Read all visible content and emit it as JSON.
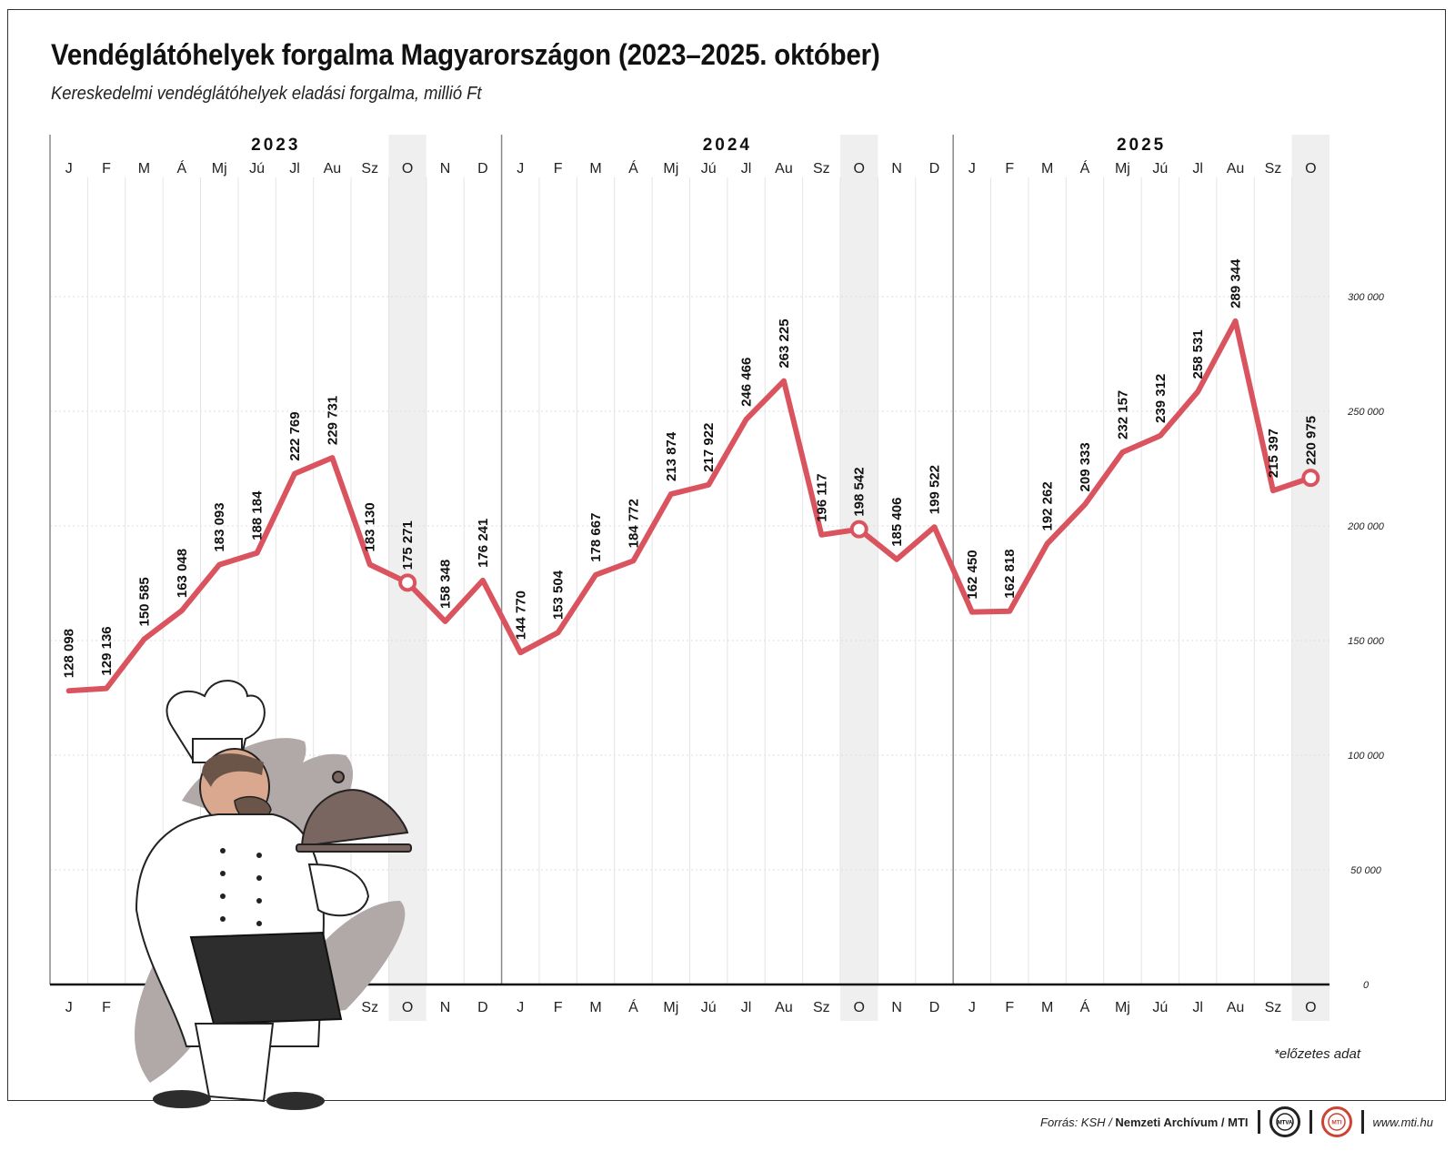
{
  "title": "Vendéglátóhelyek forgalma Magyarországon (2023–2025. október)",
  "subtitle": "Kereskedelmi vendéglátóhelyek eladási forgalma, millió Ft",
  "note": "*előzetes adat",
  "footer": {
    "source_prefix": "Forrás: KSH / ",
    "source_bold": "Nemzeti Archívum / MTI",
    "logo1_text": "MTVA",
    "logo2_text": "MTI",
    "url": "www.mti.hu"
  },
  "colors": {
    "line": "#d9545f",
    "highlight_band": "#efefef",
    "text": "#222222",
    "grid": "#dddddd"
  },
  "chart_data": {
    "type": "line",
    "years": [
      "2023",
      "2024",
      "2025"
    ],
    "months": [
      "J",
      "F",
      "M",
      "Á",
      "Mj",
      "Jú",
      "Jl",
      "Au",
      "Sz",
      "O",
      "N",
      "D",
      "J",
      "F",
      "M",
      "Á",
      "Mj",
      "Jú",
      "Jl",
      "Au",
      "Sz",
      "O",
      "N",
      "D",
      "J",
      "F",
      "M",
      "Á",
      "Mj",
      "Jú",
      "Jl",
      "Au",
      "Sz",
      "O"
    ],
    "values": [
      128098,
      129136,
      150585,
      163048,
      183093,
      188184,
      222769,
      229731,
      183130,
      175271,
      158348,
      176241,
      144770,
      153504,
      178667,
      184772,
      213874,
      217922,
      246466,
      263225,
      196117,
      198542,
      185406,
      199522,
      162450,
      162818,
      192262,
      209333,
      232157,
      239312,
      258531,
      289344,
      215397,
      220975
    ],
    "labels": [
      "128 098",
      "129 136",
      "150 585",
      "163 048",
      "183 093",
      "188 184",
      "222 769",
      "229 731",
      "183 130",
      "175 271",
      "158 348",
      "176 241",
      "144 770",
      "153 504",
      "178 667",
      "184 772",
      "213 874",
      "217 922",
      "246 466",
      "263 225",
      "196 117",
      "198 542",
      "185 406",
      "199 522",
      "162 450",
      "162 818",
      "192 262",
      "209 333",
      "232 157",
      "239 312",
      "258 531",
      "289 344",
      "215 397",
      "220 975"
    ],
    "highlighted_months": [
      "O"
    ],
    "ylim": [
      0,
      350000
    ],
    "yticks": [
      0,
      50000,
      100000,
      150000,
      200000,
      250000,
      300000
    ],
    "ytick_labels": [
      "0",
      "50 000",
      "100 000",
      "150 000",
      "200 000",
      "250 000",
      "300 000"
    ],
    "grid": true
  }
}
